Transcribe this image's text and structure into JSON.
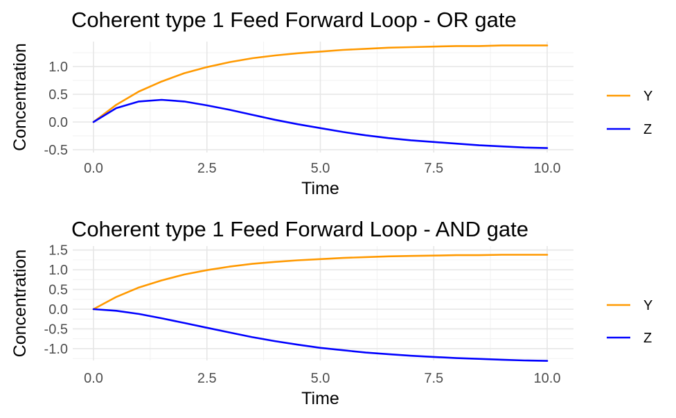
{
  "chart_data": [
    {
      "type": "line",
      "title": "Coherent type 1 Feed Forward Loop - OR gate",
      "xlabel": "Time",
      "ylabel": "Concentration",
      "xlim": [
        0,
        10
      ],
      "ylim": [
        -0.55,
        1.45
      ],
      "xticks": [
        0,
        2.5,
        5,
        7.5,
        10
      ],
      "xtick_labels": [
        "0.0",
        "2.5",
        "5.0",
        "7.5",
        "10.0"
      ],
      "yticks": [
        -0.5,
        0,
        0.5,
        1
      ],
      "ytick_labels": [
        "-0.5",
        "0.0",
        "0.5",
        "1.0"
      ],
      "grid": true,
      "legend_position": "right",
      "x": [
        0,
        0.5,
        1,
        1.5,
        2,
        2.5,
        3,
        3.5,
        4,
        4.5,
        5,
        5.5,
        6,
        6.5,
        7,
        7.5,
        8,
        8.5,
        9,
        9.5,
        10
      ],
      "series": [
        {
          "name": "Y",
          "color": "#ff9900",
          "values": [
            0,
            0.31,
            0.55,
            0.73,
            0.88,
            0.99,
            1.08,
            1.15,
            1.2,
            1.24,
            1.27,
            1.3,
            1.32,
            1.34,
            1.35,
            1.36,
            1.37,
            1.37,
            1.38,
            1.38,
            1.38
          ]
        },
        {
          "name": "Z",
          "color": "#0000ff",
          "values": [
            0,
            0.25,
            0.37,
            0.4,
            0.37,
            0.3,
            0.22,
            0.13,
            0.04,
            -0.04,
            -0.11,
            -0.18,
            -0.24,
            -0.29,
            -0.33,
            -0.36,
            -0.39,
            -0.42,
            -0.44,
            -0.46,
            -0.47
          ]
        }
      ]
    },
    {
      "type": "line",
      "title": "Coherent type 1 Feed Forward Loop - AND gate",
      "xlabel": "Time",
      "ylabel": "Concentration",
      "xlim": [
        0,
        10
      ],
      "ylim": [
        -1.3,
        1.6
      ],
      "xticks": [
        0,
        2.5,
        5,
        7.5,
        10
      ],
      "xtick_labels": [
        "0.0",
        "2.5",
        "5.0",
        "7.5",
        "10.0"
      ],
      "yticks": [
        -1,
        -0.5,
        0,
        0.5,
        1,
        1.5
      ],
      "ytick_labels": [
        "-1.0",
        "-0.5",
        "0.0",
        "0.5",
        "1.0",
        "1.5"
      ],
      "grid": true,
      "legend_position": "right",
      "x": [
        0,
        0.5,
        1,
        1.5,
        2,
        2.5,
        3,
        3.5,
        4,
        4.5,
        5,
        5.5,
        6,
        6.5,
        7,
        7.5,
        8,
        8.5,
        9,
        9.5,
        10
      ],
      "series": [
        {
          "name": "Y",
          "color": "#ff9900",
          "values": [
            0,
            0.31,
            0.55,
            0.73,
            0.88,
            0.99,
            1.08,
            1.15,
            1.2,
            1.24,
            1.27,
            1.3,
            1.32,
            1.34,
            1.35,
            1.36,
            1.37,
            1.37,
            1.38,
            1.38,
            1.38
          ]
        },
        {
          "name": "Z",
          "color": "#0000ff",
          "values": [
            0,
            -0.04,
            -0.12,
            -0.23,
            -0.35,
            -0.47,
            -0.59,
            -0.71,
            -0.81,
            -0.9,
            -0.98,
            -1.04,
            -1.1,
            -1.14,
            -1.18,
            -1.21,
            -1.24,
            -1.26,
            -1.28,
            -1.3,
            -1.31
          ]
        }
      ]
    }
  ]
}
